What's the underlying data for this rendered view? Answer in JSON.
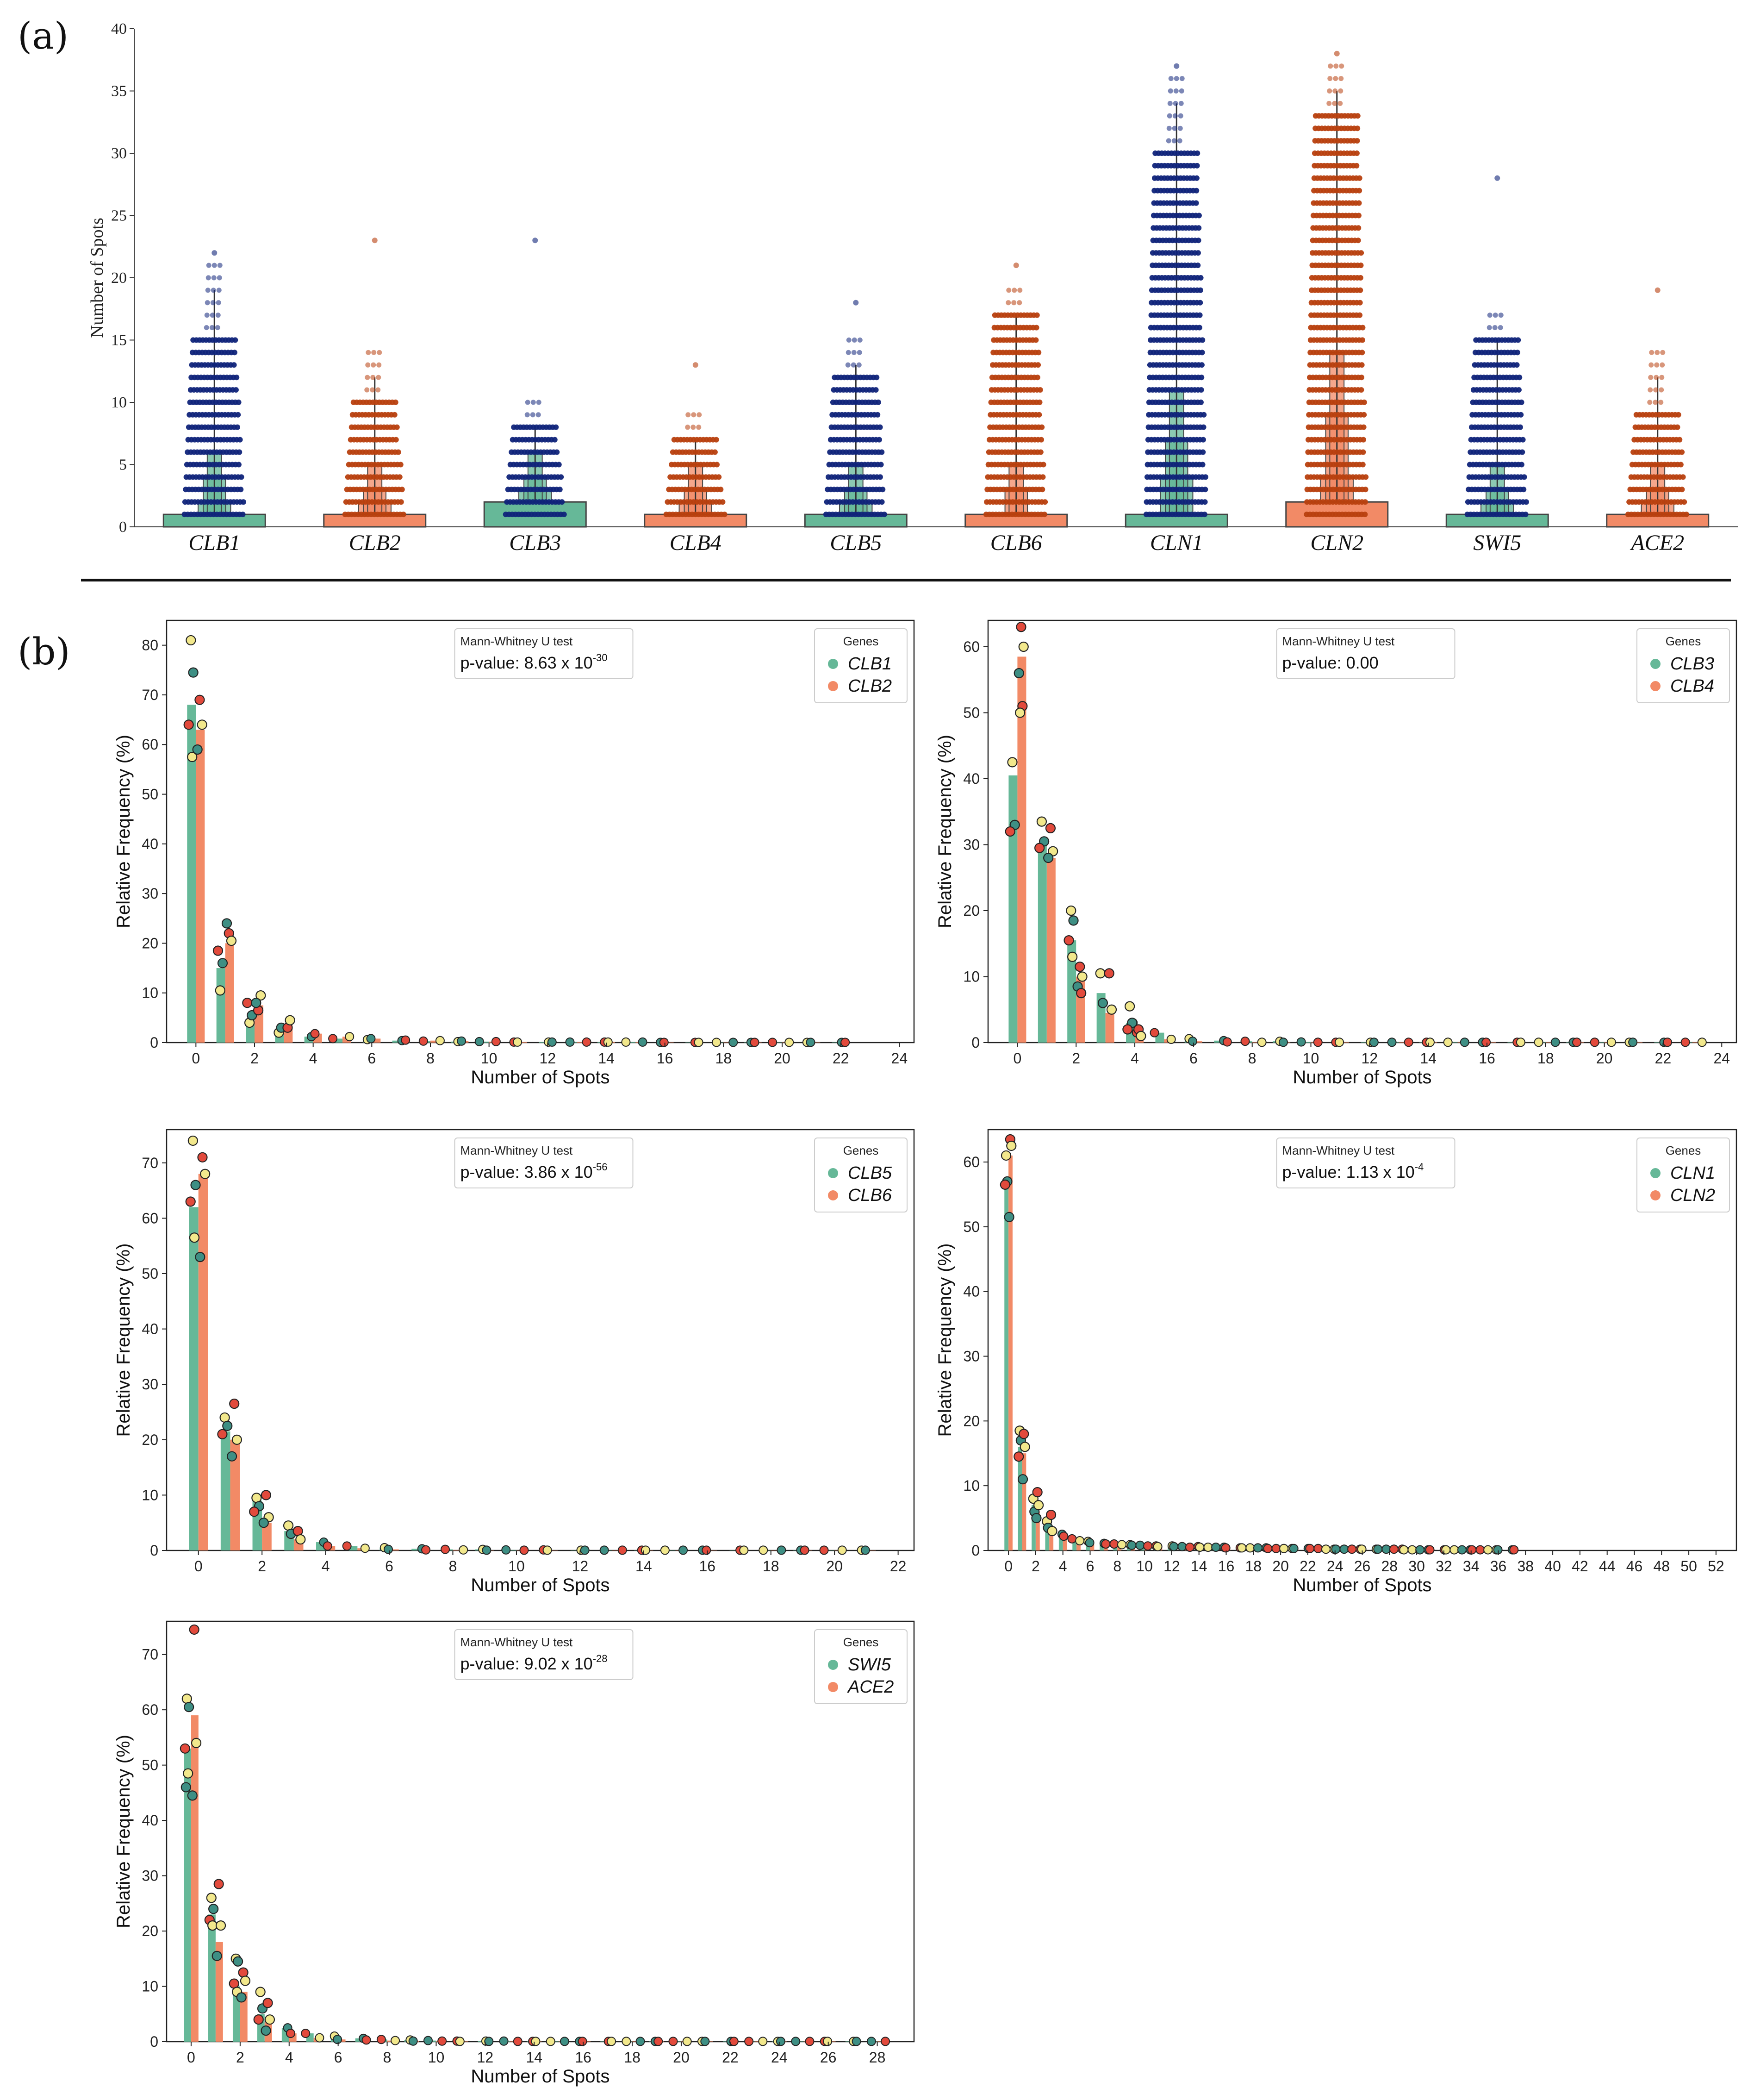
{
  "panel_a_label": "(a)",
  "panel_b_label": "(b)",
  "colors": {
    "green": "#66b898",
    "orange": "#f28a66",
    "blue_dots": "#10247a",
    "orange_dots": "#b8400f",
    "rep_yellow": "#f2e88c",
    "rep_red": "#e24a3c",
    "rep_teal": "#3e8f84"
  },
  "chart_data": [
    {
      "type": "boxen",
      "id": "a",
      "title": "",
      "xlabel": "",
      "ylabel": "Number of Spots",
      "ylim": [
        0,
        40
      ],
      "yticks": [
        0,
        5,
        10,
        15,
        20,
        25,
        30,
        35,
        40
      ],
      "categories": [
        "CLB1",
        "CLB2",
        "CLB3",
        "CLB4",
        "CLB5",
        "CLB6",
        "CLN1",
        "CLN2",
        "SWI5",
        "ACE2"
      ],
      "box_q1_q3": [
        [
          0,
          1
        ],
        [
          0,
          1
        ],
        [
          0,
          2
        ],
        [
          0,
          1
        ],
        [
          0,
          1
        ],
        [
          0,
          1
        ],
        [
          0,
          1
        ],
        [
          0,
          2
        ],
        [
          0,
          1
        ],
        [
          0,
          1
        ]
      ],
      "levels": [
        [
          2,
          4,
          6
        ],
        [
          2,
          3,
          5
        ],
        [
          3,
          4,
          6
        ],
        [
          2,
          3,
          5
        ],
        [
          2,
          3,
          5
        ],
        [
          1,
          3,
          5
        ],
        [
          4,
          7,
          11
        ],
        [
          4,
          9,
          14
        ],
        [
          2,
          3,
          5
        ],
        [
          2,
          3,
          5
        ]
      ],
      "max_values": [
        22,
        23,
        23,
        13,
        18,
        21,
        37,
        38,
        28,
        19
      ],
      "dense_to": [
        15,
        10,
        8,
        7,
        12,
        17,
        30,
        33,
        15,
        9
      ],
      "whisker_top": [
        19,
        12,
        8,
        7,
        13,
        17,
        34,
        35,
        15,
        12
      ]
    },
    {
      "type": "bar",
      "id": "b1",
      "xlabel": "Number of Spots",
      "ylabel": "Relative Frequency (%)",
      "ylim": [
        0,
        85
      ],
      "xlim": [
        -1,
        24.5
      ],
      "yticks": [
        0,
        10,
        20,
        30,
        40,
        50,
        60,
        70,
        80
      ],
      "xticks": [
        0,
        2,
        4,
        6,
        8,
        10,
        12,
        14,
        16,
        18,
        20,
        22,
        24
      ],
      "legend_title": "Genes",
      "test": "Mann-Whitney U test",
      "pvalue_text": "p-value: 8.63 x 10",
      "pvalue_exp": "-30",
      "series": [
        {
          "name": "CLB1",
          "values": [
            68,
            15,
            4.5,
            2.4,
            1.2,
            0.8,
            0.6,
            0.4,
            0.3,
            0.2,
            0.2,
            0.1,
            0.1,
            0.1,
            0.1,
            0.1,
            0.05,
            0.05,
            0.05,
            0.05,
            0.05,
            0.05,
            0.05
          ]
        },
        {
          "name": "CLB2",
          "values": [
            63,
            20,
            7.5,
            3.5,
            1.8,
            1.2,
            0.8,
            0.5,
            0.4,
            0.3,
            0.2,
            0.1,
            0.1,
            0.1,
            0.1,
            0.1,
            0.05,
            0.05,
            0.05,
            0.05,
            0.05,
            0.05,
            0.05
          ]
        }
      ],
      "replicates": {
        "CLB1": [
          [
            81,
            74.5,
            64,
            57.5
          ],
          [
            10.5,
            16,
            18.5
          ],
          [
            4,
            5.5,
            8
          ],
          [
            2,
            3
          ]
        ],
        "CLB2": [
          [
            69,
            64,
            59
          ],
          [
            22,
            20.5,
            24
          ],
          [
            6.5,
            9.5,
            8
          ],
          [
            3,
            4.5
          ]
        ]
      }
    },
    {
      "type": "bar",
      "id": "b2",
      "xlabel": "Number of Spots",
      "ylabel": "Relative Frequency (%)",
      "ylim": [
        0,
        64
      ],
      "xlim": [
        -1,
        24.5
      ],
      "yticks": [
        0,
        10,
        20,
        30,
        40,
        50,
        60
      ],
      "xticks": [
        0,
        2,
        4,
        6,
        8,
        10,
        12,
        14,
        16,
        18,
        20,
        22,
        24
      ],
      "legend_title": "Genes",
      "test": "Mann-Whitney U test",
      "pvalue_text": "p-value: 0.00",
      "pvalue_exp": "",
      "series": [
        {
          "name": "CLB3",
          "values": [
            40.5,
            30,
            15.5,
            7.5,
            3,
            1.5,
            0.6,
            0.3,
            0.2,
            0.2,
            0.1,
            0.05,
            0.05,
            0.05,
            0.05,
            0.05,
            0.05,
            0.05,
            0.05,
            0.05,
            0.05,
            0.05,
            0.05,
            0.05
          ]
        },
        {
          "name": "CLB4",
          "values": [
            58.5,
            28,
            10,
            4.5,
            1.5,
            0.5,
            0.2,
            0.1,
            0.05,
            0.05,
            0.05,
            0.05,
            0.05,
            0.05,
            0.05,
            0.05,
            0.05,
            0.05,
            0.05,
            0.05,
            0.05,
            0.05,
            0.05,
            0.05
          ]
        }
      ],
      "replicates": {
        "CLB3": [
          [
            42.5,
            33,
            32
          ],
          [
            33.5,
            30.5,
            29.5
          ],
          [
            20,
            18.5,
            15.5,
            13
          ],
          [
            10.5,
            6
          ],
          [
            5.5,
            3,
            2
          ]
        ],
        "CLB4": [
          [
            63,
            60,
            56,
            51,
            50
          ],
          [
            32.5,
            29,
            28
          ],
          [
            11.5,
            10,
            8.5,
            7.5
          ],
          [
            10.5,
            5
          ],
          [
            2,
            1
          ]
        ]
      }
    },
    {
      "type": "bar",
      "id": "b3",
      "xlabel": "Number of Spots",
      "ylabel": "Relative Frequency (%)",
      "ylim": [
        0,
        76
      ],
      "xlim": [
        -1,
        22.5
      ],
      "yticks": [
        0,
        10,
        20,
        30,
        40,
        50,
        60,
        70
      ],
      "xticks": [
        0,
        2,
        4,
        6,
        8,
        10,
        12,
        14,
        16,
        18,
        20,
        22
      ],
      "legend_title": "Genes",
      "test": "Mann-Whitney U test",
      "pvalue_text": "p-value: 3.86 x 10",
      "pvalue_exp": "-56",
      "series": [
        {
          "name": "CLB5",
          "values": [
            62,
            21.5,
            9,
            3.5,
            1.5,
            0.8,
            0.5,
            0.3,
            0.2,
            0.2,
            0.1,
            0.1,
            0.05,
            0.05,
            0.05,
            0.05,
            0.05,
            0.05,
            0.05,
            0.05,
            0.05,
            0.05
          ]
        },
        {
          "name": "CLB6",
          "values": [
            68,
            20,
            5,
            2,
            0.8,
            0.4,
            0.2,
            0.1,
            0.1,
            0.05,
            0.05,
            0.05,
            0.05,
            0.05,
            0.05,
            0.05,
            0.05,
            0.05,
            0.05,
            0.05,
            0.05,
            0.05
          ]
        }
      ],
      "replicates": {
        "CLB5": [
          [
            74,
            66,
            63,
            56.5
          ],
          [
            24,
            22.5,
            21
          ],
          [
            9.5,
            8,
            7
          ],
          [
            4.5,
            3
          ]
        ],
        "CLB6": [
          [
            71,
            68,
            53
          ],
          [
            26.5,
            20,
            17
          ],
          [
            10,
            6,
            5
          ],
          [
            3.5,
            2
          ]
        ]
      }
    },
    {
      "type": "bar",
      "id": "b4",
      "xlabel": "Number of Spots",
      "ylabel": "Relative Frequency (%)",
      "ylim": [
        0,
        65
      ],
      "xlim": [
        -1.5,
        53.5
      ],
      "yticks": [
        0,
        10,
        20,
        30,
        40,
        50,
        60
      ],
      "xticks": [
        0,
        2,
        4,
        6,
        8,
        10,
        12,
        14,
        16,
        18,
        20,
        22,
        24,
        26,
        28,
        30,
        32,
        34,
        36,
        38,
        40,
        42,
        44,
        46,
        48,
        50,
        52
      ],
      "legend_title": "Genes",
      "test": "Mann-Whitney U test",
      "pvalue_text": "p-value: 1.13 x 10",
      "pvalue_exp": "-4",
      "series": [
        {
          "name": "CLN1",
          "values": [
            57,
            16,
            7,
            4,
            2.5,
            1.8,
            1.4,
            1.1,
            1,
            0.9,
            0.8,
            0.7,
            0.7,
            0.6,
            0.6,
            0.5,
            0.5,
            0.4,
            0.4,
            0.4,
            0.3,
            0.3,
            0.3,
            0.3,
            0.2,
            0.2,
            0.2,
            0.2,
            0.2,
            0.2,
            0.1,
            0.1,
            0.1,
            0.1,
            0.1,
            0.1,
            0.1,
            0.1
          ]
        },
        {
          "name": "CLN2",
          "values": [
            61,
            15,
            6,
            3.5,
            2.2,
            1.5,
            1.2,
            1,
            0.9,
            0.8,
            0.7,
            0.6,
            0.6,
            0.5,
            0.5,
            0.5,
            0.4,
            0.4,
            0.4,
            0.3,
            0.3,
            0.3,
            0.3,
            0.2,
            0.2,
            0.2,
            0.2,
            0.2,
            0.2,
            0.1,
            0.1,
            0.1,
            0.1,
            0.1,
            0.1,
            0.1,
            0.1,
            0.1
          ]
        }
      ],
      "replicates": {
        "CLN1": [
          [
            61,
            57,
            56.5
          ],
          [
            18.5,
            17,
            14.5
          ],
          [
            8,
            6
          ],
          [
            4.5,
            3.5
          ]
        ],
        "CLN2": [
          [
            63.5,
            62.5,
            51.5
          ],
          [
            18,
            16,
            11
          ],
          [
            9,
            7,
            5
          ],
          [
            5.5,
            3
          ]
        ]
      }
    },
    {
      "type": "bar",
      "id": "b5",
      "xlabel": "Number of Spots",
      "ylabel": "Relative Frequency (%)",
      "ylim": [
        0,
        76
      ],
      "xlim": [
        -1,
        29.5
      ],
      "yticks": [
        0,
        10,
        20,
        30,
        40,
        50,
        60,
        70
      ],
      "xticks": [
        0,
        2,
        4,
        6,
        8,
        10,
        12,
        14,
        16,
        18,
        20,
        22,
        24,
        26,
        28
      ],
      "legend_title": "Genes",
      "test": "Mann-Whitney U test",
      "pvalue_text": "p-value: 9.02 x 10",
      "pvalue_exp": "-28",
      "series": [
        {
          "name": "SWI5",
          "values": [
            53,
            23,
            10,
            5,
            2.5,
            1.5,
            1,
            0.6,
            0.4,
            0.3,
            0.2,
            0.1,
            0.1,
            0.1,
            0.05,
            0.05,
            0.05,
            0.05,
            0.05,
            0.05,
            0.05,
            0.05,
            0.05,
            0.05,
            0.05,
            0.05,
            0.05,
            0.05,
            0.05
          ]
        },
        {
          "name": "ACE2",
          "values": [
            59,
            18,
            9,
            3.5,
            1.5,
            0.7,
            0.4,
            0.3,
            0.2,
            0.1,
            0.1,
            0.05,
            0.05,
            0.05,
            0.05,
            0.05,
            0.05,
            0.05,
            0.05,
            0.05,
            0.05,
            0.05,
            0.05,
            0.05,
            0.05,
            0.05,
            0.05,
            0.05,
            0.05
          ]
        }
      ],
      "replicates": {
        "SWI5": [
          [
            62,
            60.5,
            53,
            48.5,
            46
          ],
          [
            26,
            24,
            22,
            21
          ],
          [
            15,
            14.5,
            10.5,
            9
          ],
          [
            9,
            6,
            4
          ]
        ],
        "ACE2": [
          [
            74.5,
            54,
            44.5
          ],
          [
            28.5,
            21,
            15.5
          ],
          [
            12.5,
            11,
            8
          ],
          [
            7,
            4,
            2
          ]
        ]
      }
    }
  ]
}
